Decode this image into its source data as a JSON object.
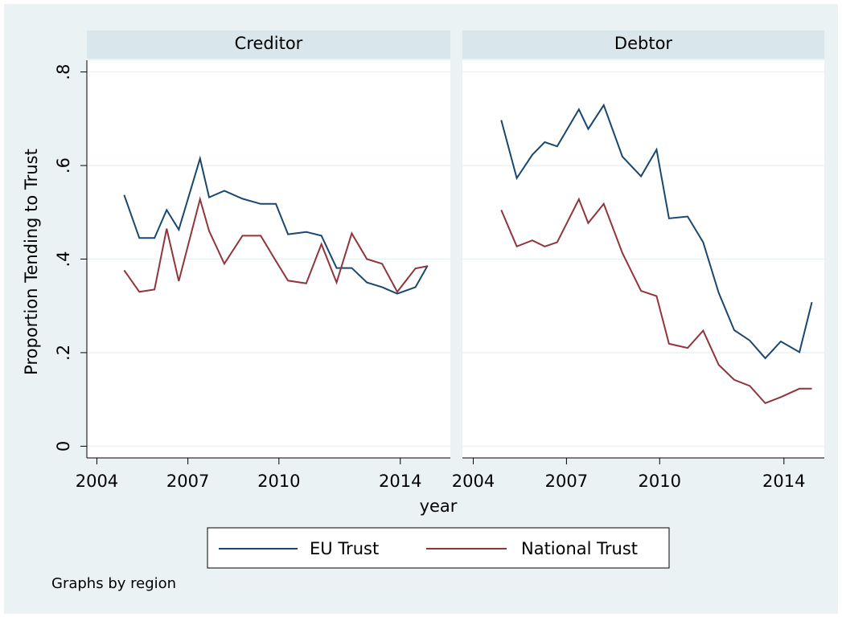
{
  "chart_data": [
    {
      "type": "line",
      "title": "Creditor",
      "y_label": "Proportion Tending to Trust",
      "x_label": "year",
      "x": [
        2004.9,
        2005.4,
        2005.9,
        2006.3,
        2006.7,
        2007.4,
        2007.7,
        2008.2,
        2008.8,
        2009.4,
        2009.9,
        2010.3,
        2010.9,
        2011.4,
        2011.9,
        2012.4,
        2012.9,
        2013.4,
        2013.9,
        2014.5,
        2014.9
      ],
      "series": [
        {
          "name": "EU Trust",
          "color": "#1a476f",
          "values": [
            0.537,
            0.445,
            0.445,
            0.505,
            0.463,
            0.615,
            0.532,
            0.546,
            0.529,
            0.518,
            0.518,
            0.453,
            0.458,
            0.45,
            0.381,
            0.381,
            0.35,
            0.34,
            0.326,
            0.34,
            0.386
          ]
        },
        {
          "name": "National Trust",
          "color": "#90353b",
          "values": [
            0.376,
            0.33,
            0.335,
            0.465,
            0.353,
            0.528,
            0.46,
            0.39,
            0.45,
            0.45,
            0.396,
            0.354,
            0.348,
            0.432,
            0.35,
            0.455,
            0.4,
            0.39,
            0.33,
            0.38,
            0.385
          ]
        }
      ],
      "xlim": [
        2003.67,
        2015.65
      ],
      "ylim": [
        -0.025,
        0.825
      ],
      "xticks": [
        2004,
        2007,
        2010,
        2014
      ],
      "yticks": [
        {
          "value": 0,
          "label": "0"
        },
        {
          "value": 0.2,
          "label": ".2"
        },
        {
          "value": 0.4,
          "label": ".4"
        },
        {
          "value": 0.6,
          "label": ".6"
        },
        {
          "value": 0.8,
          "label": ".8"
        }
      ],
      "grid": true
    },
    {
      "type": "line",
      "title": "Debtor",
      "x": [
        2004.9,
        2005.4,
        2005.9,
        2006.3,
        2006.7,
        2007.4,
        2007.7,
        2008.2,
        2008.8,
        2009.4,
        2009.9,
        2010.3,
        2010.9,
        2011.4,
        2011.9,
        2012.4,
        2012.9,
        2013.4,
        2013.9,
        2014.5,
        2014.9
      ],
      "series": [
        {
          "name": "EU Trust",
          "color": "#1a476f",
          "values": [
            0.697,
            0.573,
            0.623,
            0.65,
            0.641,
            0.72,
            0.678,
            0.729,
            0.619,
            0.577,
            0.634,
            0.487,
            0.491,
            0.436,
            0.328,
            0.248,
            0.226,
            0.188,
            0.224,
            0.201,
            0.308
          ]
        },
        {
          "name": "National Trust",
          "color": "#90353b",
          "values": [
            0.505,
            0.427,
            0.44,
            0.427,
            0.436,
            0.528,
            0.477,
            0.518,
            0.413,
            0.332,
            0.321,
            0.219,
            0.21,
            0.247,
            0.174,
            0.142,
            0.129,
            0.092,
            0.105,
            0.123,
            0.123
          ]
        }
      ],
      "xlim": [
        2003.65,
        2015.3
      ],
      "ylim": [
        -0.025,
        0.825
      ],
      "xticks": [
        2004,
        2007,
        2010,
        2014
      ],
      "yticks": [
        {
          "value": 0,
          "label": "0"
        },
        {
          "value": 0.2,
          "label": ".2"
        },
        {
          "value": 0.4,
          "label": ".4"
        },
        {
          "value": 0.6,
          "label": ".6"
        },
        {
          "value": 0.8,
          "label": ".8"
        }
      ],
      "grid": true
    }
  ],
  "note": "Graphs by region"
}
